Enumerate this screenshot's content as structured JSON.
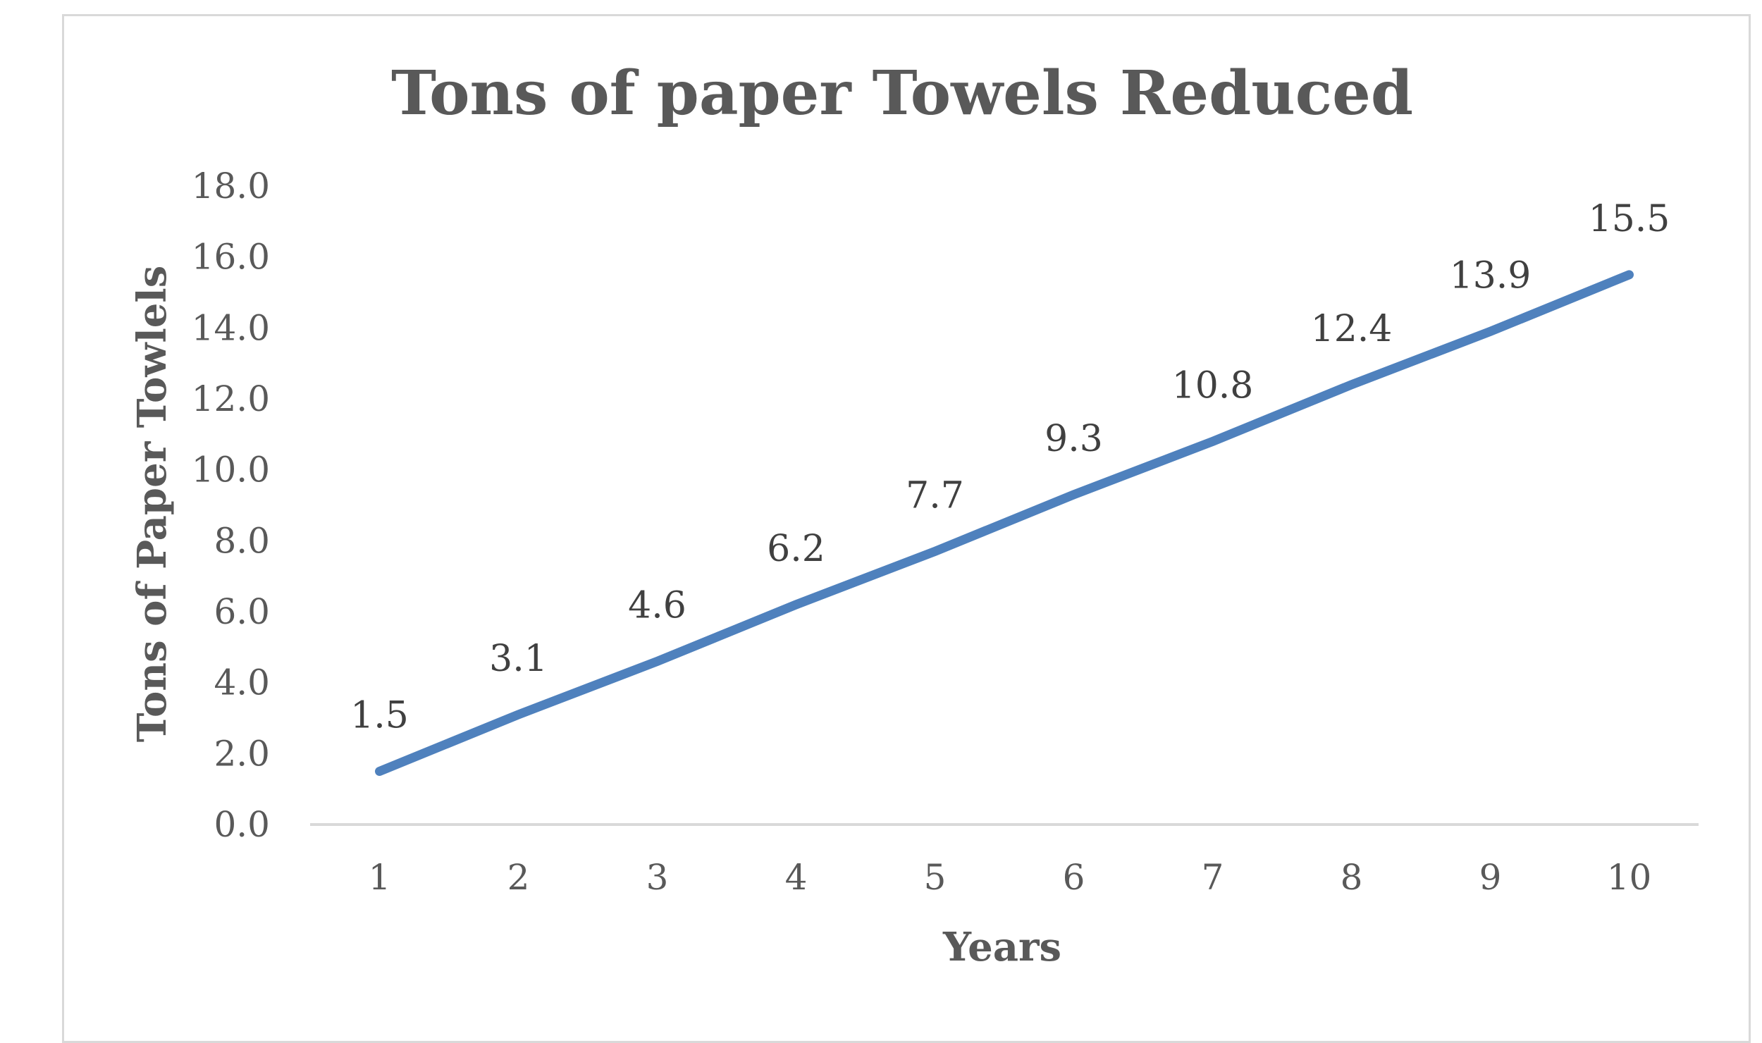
{
  "chart_data": {
    "type": "line",
    "title": "Tons of paper Towels Reduced",
    "xlabel": "Years",
    "ylabel": "Tons of Paper Towlels",
    "categories": [
      "1",
      "2",
      "3",
      "4",
      "5",
      "6",
      "7",
      "8",
      "9",
      "10"
    ],
    "series": [
      {
        "values": [
          1.5,
          3.1,
          4.6,
          6.2,
          7.7,
          9.3,
          10.8,
          12.4,
          13.9,
          15.5
        ],
        "data_labels": [
          "1.5",
          "3.1",
          "4.6",
          "6.2",
          "7.7",
          "9.3",
          "10.8",
          "12.4",
          "13.9",
          "15.5"
        ],
        "color": "#4f81bd"
      }
    ],
    "yticks": [
      "0.0",
      "2.0",
      "4.0",
      "6.0",
      "8.0",
      "10.0",
      "12.0",
      "14.0",
      "16.0",
      "18.0"
    ],
    "ylim": [
      0,
      18
    ],
    "grid": false,
    "legend": "none"
  }
}
